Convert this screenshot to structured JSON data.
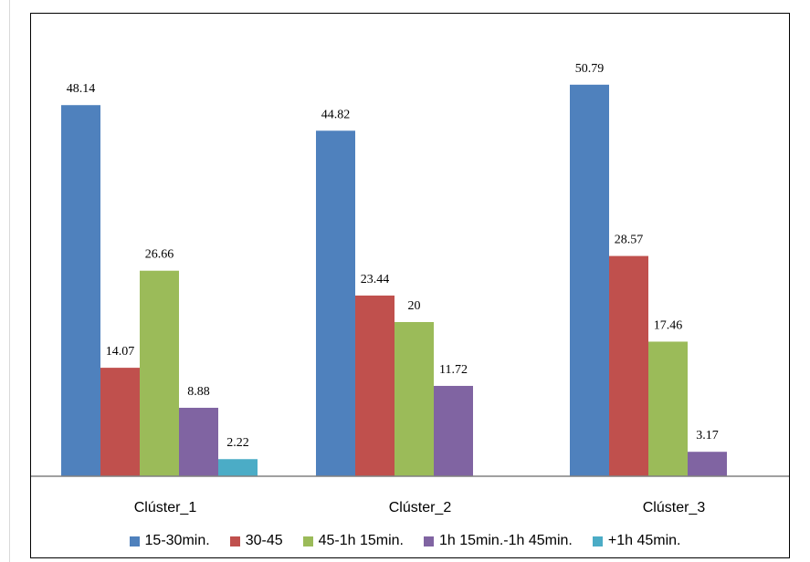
{
  "chart_data": {
    "type": "bar",
    "categories": [
      "Clúster_1",
      "Clúster_2",
      "Clúster_3"
    ],
    "series": [
      {
        "name": "15-30min.",
        "color": "#4f81bd",
        "values": [
          48.14,
          44.82,
          50.79
        ],
        "labels": [
          "48.14",
          "44.82",
          "50.79"
        ]
      },
      {
        "name": "30-45",
        "color": "#c0504d",
        "values": [
          14.07,
          23.44,
          28.57
        ],
        "labels": [
          "14.07",
          "23.44",
          "28.57"
        ]
      },
      {
        "name": "45-1h 15min.",
        "color": "#9bbb59",
        "values": [
          26.66,
          20,
          17.46
        ],
        "labels": [
          "26.66",
          "20",
          "17.46"
        ]
      },
      {
        "name": "1h 15min.-1h 45min.",
        "color": "#8064a2",
        "values": [
          8.88,
          11.72,
          3.17
        ],
        "labels": [
          "8.88",
          "11.72",
          "3.17"
        ]
      },
      {
        "name": "+1h 45min.",
        "color": "#4bacc6",
        "values": [
          2.22,
          null,
          null
        ],
        "labels": [
          "2.22",
          "",
          ""
        ]
      }
    ],
    "ylim": [
      0,
      55
    ],
    "grid": false,
    "legend_position": "bottom"
  }
}
